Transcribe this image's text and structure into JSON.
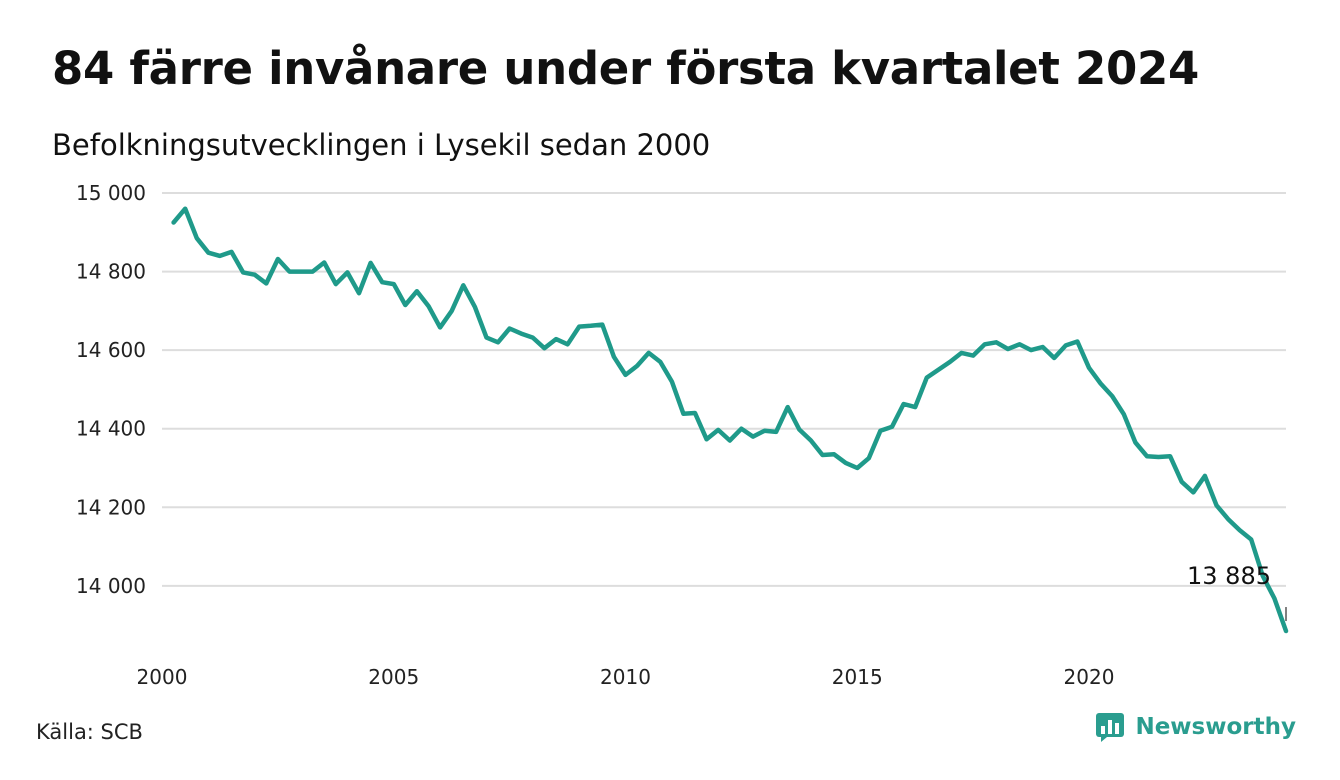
{
  "header": {
    "title": "84 färre invånare under första kvartalet 2024",
    "subtitle": "Befolkningsutvecklingen i Lysekil sedan 2000"
  },
  "footer": {
    "source": "Källa: SCB",
    "brand": "Newsworthy",
    "brand_icon": "bar-chart-icon"
  },
  "colors": {
    "line": "#1f9a8a",
    "grid": "#dddddd",
    "brand": "#2a9d8f"
  },
  "chart_data": {
    "type": "line",
    "title": "84 färre invånare under första kvartalet 2024",
    "subtitle": "Befolkningsutvecklingen i Lysekil sedan 2000",
    "xlabel": "",
    "ylabel": "",
    "xlim": [
      2000,
      2024.25
    ],
    "ylim": [
      13880,
      15000
    ],
    "y_ticks": [
      14000,
      14200,
      14400,
      14600,
      14800,
      15000
    ],
    "y_tick_labels": [
      "14 000",
      "14 200",
      "14 400",
      "14 600",
      "14 800",
      "15 000"
    ],
    "x_ticks": [
      2000,
      2005,
      2010,
      2015,
      2020
    ],
    "x_tick_labels": [
      "2000",
      "2005",
      "2010",
      "2015",
      "2020"
    ],
    "grid": "horizontal",
    "end_label": "13 885",
    "series": [
      {
        "x": [
          2000.25,
          2000.5,
          2000.75,
          2001,
          2001.25,
          2001.5,
          2001.75,
          2002,
          2002.25,
          2002.5,
          2002.75,
          2003,
          2003.25,
          2003.5,
          2003.75,
          2004,
          2004.25,
          2004.5,
          2004.75,
          2005,
          2005.25,
          2005.5,
          2005.75,
          2006,
          2006.25,
          2006.5,
          2006.75,
          2007,
          2007.25,
          2007.5,
          2007.75,
          2008,
          2008.25,
          2008.5,
          2008.75,
          2009,
          2009.25,
          2009.5,
          2009.75,
          2010,
          2010.25,
          2010.5,
          2010.75,
          2011,
          2011.25,
          2011.5,
          2011.75,
          2012,
          2012.25,
          2012.5,
          2012.75,
          2013,
          2013.25,
          2013.5,
          2013.75,
          2014,
          2014.25,
          2014.5,
          2014.75,
          2015,
          2015.25,
          2015.5,
          2015.75,
          2016,
          2016.25,
          2016.5,
          2016.75,
          2017,
          2017.25,
          2017.5,
          2017.75,
          2018,
          2018.25,
          2018.5,
          2018.75,
          2019,
          2019.25,
          2019.5,
          2019.75,
          2020,
          2020.25,
          2020.5,
          2020.75,
          2021,
          2021.25,
          2021.5,
          2021.75,
          2022,
          2022.25,
          2022.5,
          2022.75,
          2023,
          2023.25,
          2023.5,
          2023.75,
          2024,
          2024.25
        ],
        "values": [
          14925,
          14960,
          14885,
          14848,
          14840,
          14850,
          14798,
          14792,
          14770,
          14832,
          14800,
          14800,
          14800,
          14823,
          14768,
          14798,
          14745,
          14822,
          14773,
          14768,
          14715,
          14750,
          14712,
          14658,
          14700,
          14765,
          14710,
          14632,
          14620,
          14655,
          14642,
          14632,
          14605,
          14628,
          14615,
          14660,
          14662,
          14665,
          14583,
          14537,
          14560,
          14593,
          14570,
          14520,
          14438,
          14440,
          14373,
          14397,
          14370,
          14400,
          14380,
          14395,
          14392,
          14455,
          14398,
          14370,
          14333,
          14335,
          14313,
          14300,
          14325,
          14395,
          14405,
          14463,
          14455,
          14530,
          14550,
          14570,
          14593,
          14586,
          14615,
          14620,
          14603,
          14615,
          14600,
          14608,
          14580,
          14612,
          14622,
          14555,
          14515,
          14483,
          14437,
          14365,
          14330,
          14328,
          14330,
          14265,
          14238,
          14280,
          14205,
          14170,
          14142,
          14118,
          14025,
          13968,
          13885
        ]
      }
    ]
  }
}
